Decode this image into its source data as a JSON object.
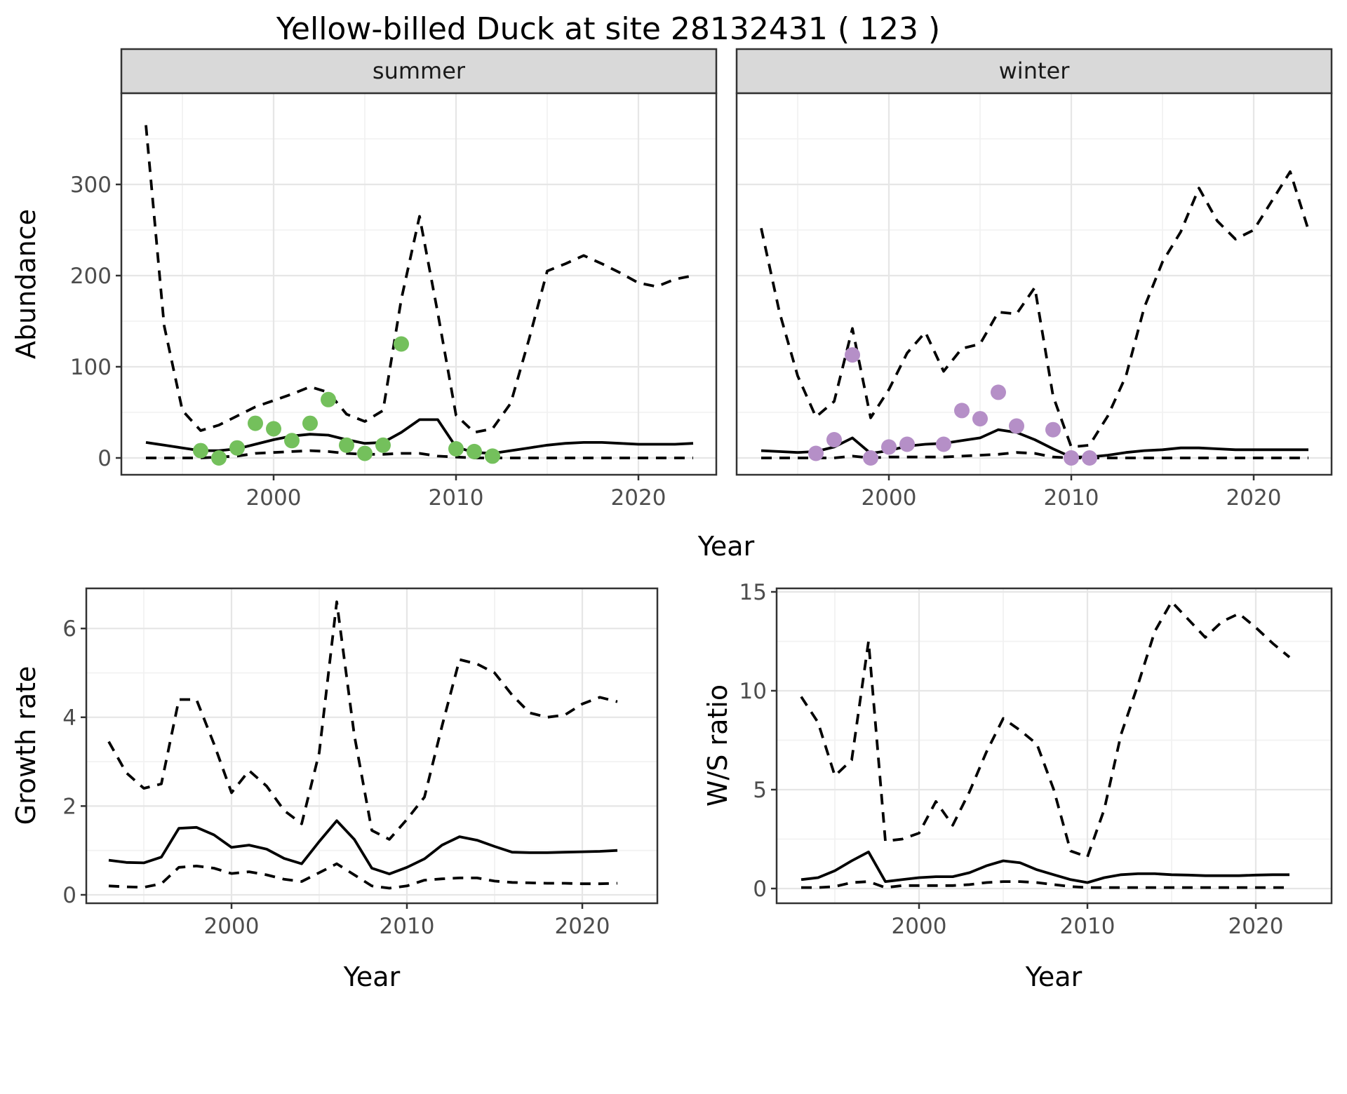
{
  "title": "Yellow-billed Duck at site 28132431 ( 123 )",
  "facet_labels": {
    "summer": "summer",
    "winter": "winter"
  },
  "axis_labels": {
    "y_top": "Abundance",
    "x_top": "Year",
    "y_bottom_left": "Growth rate",
    "y_bottom_right": "W/S ratio",
    "x_bottom_left": "Year",
    "x_bottom_right": "Year"
  },
  "colors": {
    "summer_points": "#74C05C",
    "winter_points": "#B58FC7",
    "line": "#000000",
    "strip_fill": "#D9D9D9",
    "strip_border": "#333333",
    "panel_border": "#333333",
    "grid_major": "#E6E6E6",
    "grid_minor": "#F2F2F2",
    "tick_mark": "#333333",
    "tick_text": "#4D4D4D"
  },
  "chart_data": [
    {
      "type": "line",
      "facet": "summer",
      "xlabel": "Year",
      "ylabel": "Abundance",
      "xlim": [
        1991.6,
        2024.3
      ],
      "ylim": [
        -18,
        400
      ],
      "xticks": [
        2000,
        2010,
        2020
      ],
      "xticks_minor": [
        1995,
        2005,
        2015
      ],
      "yticks": [
        0,
        100,
        200,
        300
      ],
      "yticks_minor": [
        50,
        150,
        250,
        350
      ],
      "grid": true,
      "legend": "none",
      "x": [
        1993,
        1994,
        1995,
        1996,
        1997,
        1998,
        1999,
        2000,
        2001,
        2002,
        2003,
        2004,
        2005,
        2006,
        2007,
        2008,
        2009,
        2010,
        2011,
        2012,
        2013,
        2014,
        2015,
        2016,
        2017,
        2018,
        2019,
        2020,
        2021,
        2022,
        2023
      ],
      "series": [
        {
          "name": "upper_ci",
          "style": "dashed",
          "values": [
            365,
            145,
            52,
            30,
            36,
            46,
            56,
            63,
            70,
            78,
            72,
            48,
            40,
            52,
            174,
            265,
            159,
            47,
            28,
            32,
            60,
            130,
            205,
            213,
            222,
            213,
            203,
            192,
            188,
            196,
            200
          ]
        },
        {
          "name": "median",
          "style": "solid",
          "values": [
            17,
            14,
            11,
            8,
            8,
            10,
            15,
            20,
            24,
            26,
            25,
            20,
            16,
            17,
            28,
            42,
            42,
            12,
            6,
            5,
            8,
            11,
            14,
            16,
            17,
            17,
            16,
            15,
            15,
            15,
            16
          ]
        },
        {
          "name": "lower_ci",
          "style": "dashed",
          "values": [
            0,
            0,
            0,
            0,
            1,
            2,
            5,
            6,
            7,
            8,
            7,
            5,
            4,
            4,
            5,
            5,
            2,
            1,
            0,
            0,
            0,
            0,
            0,
            0,
            0,
            0,
            0,
            0,
            0,
            0,
            0
          ]
        }
      ],
      "points": {
        "name": "observed_counts",
        "x": [
          1996,
          1997,
          1998,
          1999,
          2000,
          2001,
          2002,
          2003,
          2004,
          2005,
          2006,
          2007,
          2010,
          2011,
          2012
        ],
        "y": [
          8,
          0,
          11,
          38,
          32,
          19,
          38,
          64,
          14,
          5,
          14,
          125,
          10,
          7,
          2
        ]
      }
    },
    {
      "type": "line",
      "facet": "winter",
      "xlabel": "Year",
      "ylabel": "Abundance",
      "xlim": [
        1991.6,
        2024.3
      ],
      "ylim": [
        -18,
        400
      ],
      "xticks": [
        2000,
        2010,
        2020
      ],
      "xticks_minor": [
        1995,
        2005,
        2015
      ],
      "yticks": [
        0,
        100,
        200,
        300
      ],
      "yticks_minor": [
        50,
        150,
        250,
        350
      ],
      "grid": true,
      "legend": "none",
      "x": [
        1993,
        1994,
        1995,
        1996,
        1997,
        1998,
        1999,
        2000,
        2001,
        2002,
        2003,
        2004,
        2005,
        2006,
        2007,
        2008,
        2009,
        2010,
        2011,
        2012,
        2013,
        2014,
        2015,
        2016,
        2017,
        2018,
        2019,
        2020,
        2021,
        2022,
        2023
      ],
      "series": [
        {
          "name": "upper_ci",
          "style": "dashed",
          "values": [
            252,
            160,
            90,
            45,
            62,
            142,
            44,
            75,
            115,
            138,
            95,
            120,
            125,
            160,
            158,
            187,
            68,
            12,
            14,
            46,
            90,
            165,
            215,
            248,
            296,
            260,
            240,
            250,
            282,
            314,
            250
          ]
        },
        {
          "name": "median",
          "style": "solid",
          "values": [
            8,
            7,
            6,
            7,
            12,
            22,
            5,
            8,
            13,
            15,
            16,
            19,
            22,
            31,
            28,
            20,
            10,
            1,
            1,
            3,
            6,
            8,
            9,
            11,
            11,
            10,
            9,
            9,
            9,
            9,
            9
          ]
        },
        {
          "name": "lower_ci",
          "style": "dashed",
          "values": [
            0,
            0,
            0,
            0,
            0,
            2,
            0,
            1,
            1,
            1,
            1,
            2,
            3,
            4,
            6,
            5,
            1,
            0,
            0,
            0,
            0,
            0,
            0,
            0,
            0,
            0,
            0,
            0,
            0,
            0,
            0
          ]
        }
      ],
      "points": {
        "name": "observed_counts",
        "x": [
          1996,
          1997,
          1998,
          1999,
          2000,
          2001,
          2003,
          2004,
          2005,
          2006,
          2007,
          2009,
          2010,
          2011
        ],
        "y": [
          5,
          20,
          113,
          0,
          12,
          15,
          15,
          52,
          43,
          72,
          35,
          31,
          0,
          0
        ]
      }
    },
    {
      "type": "line",
      "facet": "",
      "xlabel": "Year",
      "ylabel": "Growth rate",
      "xlim": [
        1991.7,
        2024.3
      ],
      "ylim": [
        -0.2,
        6.9
      ],
      "xticks": [
        2000,
        2010,
        2020
      ],
      "xticks_minor": [
        1995,
        2005,
        2015
      ],
      "yticks": [
        0,
        2,
        4,
        6
      ],
      "yticks_minor": [
        1,
        3,
        5
      ],
      "grid": true,
      "legend": "none",
      "x": [
        1993,
        1994,
        1995,
        1996,
        1997,
        1998,
        1999,
        2000,
        2001,
        2002,
        2003,
        2004,
        2005,
        2006,
        2007,
        2008,
        2009,
        2010,
        2011,
        2012,
        2013,
        2014,
        2015,
        2016,
        2017,
        2018,
        2019,
        2020,
        2021,
        2022
      ],
      "series": [
        {
          "name": "upper_ci",
          "style": "dashed",
          "values": [
            3.45,
            2.75,
            2.4,
            2.5,
            4.4,
            4.4,
            3.4,
            2.3,
            2.8,
            2.45,
            1.9,
            1.6,
            3.2,
            6.6,
            3.6,
            1.45,
            1.25,
            1.7,
            2.2,
            3.8,
            5.3,
            5.2,
            5.0,
            4.5,
            4.1,
            4.0,
            4.05,
            4.3,
            4.45,
            4.35
          ]
        },
        {
          "name": "median",
          "style": "solid",
          "values": [
            0.78,
            0.73,
            0.72,
            0.85,
            1.5,
            1.52,
            1.35,
            1.07,
            1.12,
            1.03,
            0.82,
            0.7,
            1.2,
            1.67,
            1.25,
            0.6,
            0.47,
            0.62,
            0.81,
            1.12,
            1.31,
            1.23,
            1.09,
            0.96,
            0.95,
            0.95,
            0.96,
            0.97,
            0.98,
            1.0
          ]
        },
        {
          "name": "lower_ci",
          "style": "dashed",
          "values": [
            0.2,
            0.18,
            0.17,
            0.25,
            0.62,
            0.65,
            0.6,
            0.48,
            0.52,
            0.45,
            0.35,
            0.3,
            0.5,
            0.7,
            0.45,
            0.2,
            0.15,
            0.2,
            0.33,
            0.36,
            0.38,
            0.38,
            0.31,
            0.28,
            0.27,
            0.26,
            0.26,
            0.25,
            0.25,
            0.26
          ]
        }
      ],
      "points": null
    },
    {
      "type": "line",
      "facet": "",
      "xlabel": "Year",
      "ylabel": "W/S ratio",
      "xlim": [
        1991.5,
        2024.5
      ],
      "ylim": [
        -0.75,
        15.2
      ],
      "xticks": [
        2000,
        2010,
        2020
      ],
      "xticks_minor": [
        1995,
        2005,
        2015
      ],
      "yticks": [
        0,
        5,
        10,
        15
      ],
      "yticks_minor": [
        2.5,
        7.5,
        12.5
      ],
      "grid": true,
      "legend": "none",
      "x": [
        1993,
        1994,
        1995,
        1996,
        1997,
        1998,
        1999,
        2000,
        2001,
        2002,
        2003,
        2004,
        2005,
        2006,
        2007,
        2008,
        2009,
        2010,
        2011,
        2012,
        2013,
        2014,
        2015,
        2016,
        2017,
        2018,
        2019,
        2020,
        2021,
        2022
      ],
      "series": [
        {
          "name": "upper_ci",
          "style": "dashed",
          "values": [
            9.7,
            8.4,
            5.7,
            6.5,
            12.5,
            2.4,
            2.5,
            2.8,
            4.4,
            3.2,
            4.9,
            6.9,
            8.6,
            8.0,
            7.3,
            5.0,
            1.9,
            1.6,
            4.0,
            7.8,
            10.3,
            13.0,
            14.5,
            13.6,
            12.7,
            13.5,
            13.9,
            13.2,
            12.4,
            11.7
          ]
        },
        {
          "name": "median",
          "style": "solid",
          "values": [
            0.45,
            0.55,
            0.9,
            1.4,
            1.85,
            0.35,
            0.45,
            0.55,
            0.6,
            0.6,
            0.8,
            1.15,
            1.4,
            1.3,
            0.95,
            0.7,
            0.45,
            0.3,
            0.55,
            0.7,
            0.75,
            0.75,
            0.7,
            0.68,
            0.65,
            0.65,
            0.65,
            0.68,
            0.7,
            0.7
          ]
        },
        {
          "name": "lower_ci",
          "style": "dashed",
          "values": [
            0.05,
            0.05,
            0.1,
            0.3,
            0.35,
            0.05,
            0.15,
            0.15,
            0.15,
            0.15,
            0.2,
            0.3,
            0.35,
            0.35,
            0.3,
            0.2,
            0.1,
            0.05,
            0.05,
            0.05,
            0.05,
            0.05,
            0.05,
            0.05,
            0.05,
            0.05,
            0.05,
            0.05,
            0.05,
            0.05
          ]
        }
      ],
      "points": null
    }
  ]
}
